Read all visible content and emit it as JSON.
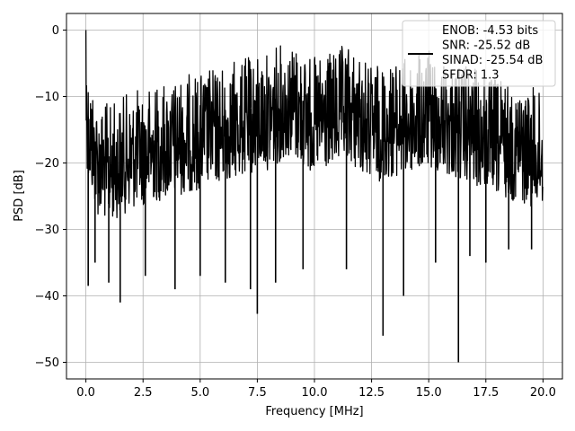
{
  "chart_data": {
    "type": "line",
    "title": "",
    "xlabel": "Frequency [MHz]",
    "ylabel": "PSD [dB]",
    "xlim": [
      -0.85,
      20.85
    ],
    "ylim": [
      -52.5,
      2.5
    ],
    "xticks": [
      0.0,
      2.5,
      5.0,
      7.5,
      10.0,
      12.5,
      15.0,
      17.5,
      20.0
    ],
    "xtick_labels": [
      "0.0",
      "2.5",
      "5.0",
      "7.5",
      "10.0",
      "12.5",
      "15.0",
      "17.5",
      "20.0"
    ],
    "yticks": [
      0,
      -10,
      -20,
      -30,
      -40,
      -50
    ],
    "ytick_labels": [
      "0",
      "−10",
      "−20",
      "−30",
      "−40",
      "−50"
    ],
    "grid": true,
    "legend_position": "top-right",
    "legend_entries": [
      "ENOB: -4.53 bits",
      "SNR: -25.52 dB",
      "SINAD: -25.54 dB",
      "SFDR: 1.3"
    ],
    "series": [
      {
        "color": "#000000",
        "points": {
          "description_free_envelope": true,
          "x_start": 0.0,
          "x_end": 20.0,
          "upper_envelope": [
            [
              0.0,
              0.0
            ],
            [
              0.1,
              -5
            ],
            [
              0.5,
              -10
            ],
            [
              1.0,
              -11
            ],
            [
              2.0,
              -9
            ],
            [
              3.0,
              -8
            ],
            [
              4.0,
              -7
            ],
            [
              5.0,
              -6
            ],
            [
              6.0,
              -5
            ],
            [
              7.0,
              -4
            ],
            [
              8.0,
              -3
            ],
            [
              8.9,
              -1
            ],
            [
              10.0,
              -4
            ],
            [
              11.5,
              -2
            ],
            [
              12.5,
              -5
            ],
            [
              14.0,
              -4
            ],
            [
              15.0,
              -3
            ],
            [
              16.5,
              -5
            ],
            [
              18.0,
              -7
            ],
            [
              19.0,
              -8
            ],
            [
              20.0,
              -9
            ]
          ],
          "lower_dips": [
            [
              0.1,
              -38.5
            ],
            [
              0.4,
              -35
            ],
            [
              1.0,
              -38
            ],
            [
              1.5,
              -41
            ],
            [
              2.6,
              -37
            ],
            [
              3.9,
              -39
            ],
            [
              5.0,
              -37
            ],
            [
              6.1,
              -38
            ],
            [
              7.2,
              -39
            ],
            [
              7.5,
              -42.7
            ],
            [
              8.3,
              -38
            ],
            [
              9.5,
              -36
            ],
            [
              11.4,
              -36
            ],
            [
              13.0,
              -46
            ],
            [
              13.9,
              -40
            ],
            [
              15.3,
              -35
            ],
            [
              16.3,
              -50
            ],
            [
              16.8,
              -34
            ],
            [
              17.5,
              -35
            ],
            [
              18.5,
              -33
            ],
            [
              19.5,
              -33
            ]
          ]
        }
      }
    ]
  }
}
